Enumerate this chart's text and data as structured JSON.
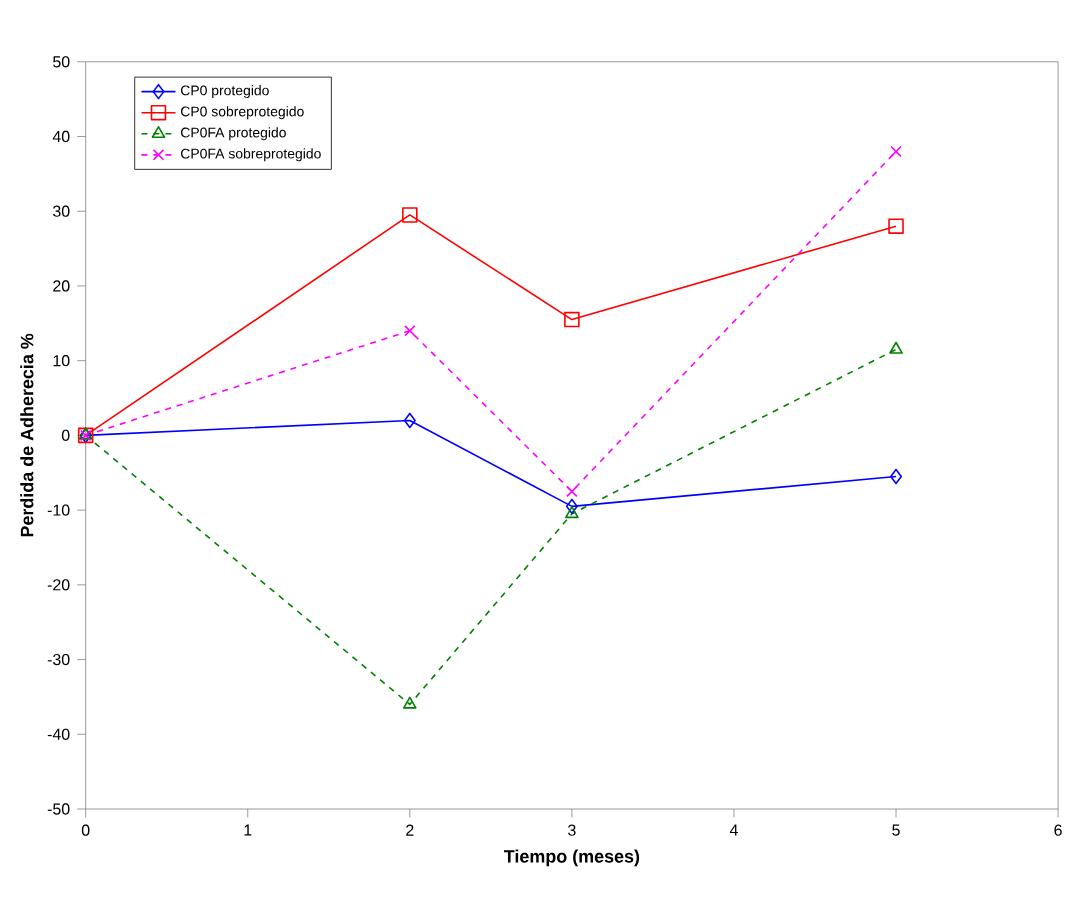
{
  "chart_data": {
    "type": "line",
    "xlabel": "Tiempo (meses)",
    "ylabel": "Perdida de Adherecia %",
    "x": [
      0,
      2,
      3,
      5
    ],
    "xlim": [
      0,
      6
    ],
    "xticks": [
      0,
      1,
      2,
      3,
      4,
      5,
      6
    ],
    "ylim": [
      -50,
      50
    ],
    "yticks": [
      -50,
      -40,
      -30,
      -20,
      -10,
      0,
      10,
      20,
      30,
      40,
      50
    ],
    "grid": false,
    "legend": "top left",
    "series": [
      {
        "name": "CP0 protegido",
        "color": "#0000ff",
        "values": [
          0,
          2,
          -9.5,
          -5.5
        ],
        "marker": "diamond",
        "line_style": "solid"
      },
      {
        "name": "CP0 sobreprotegido",
        "color": "#ff0000",
        "values": [
          0,
          29.5,
          15.5,
          28
        ],
        "marker": "square",
        "line_style": "solid"
      },
      {
        "name": "CP0FA protegido",
        "color": "#008000",
        "values": [
          0,
          -36,
          -10.5,
          11.5
        ],
        "marker": "triangle",
        "line_style": "dashed"
      },
      {
        "name": "CP0FA sobreprotegido",
        "color": "#ff00ff",
        "values": [
          0,
          14,
          -7.5,
          38
        ],
        "marker": "cross",
        "line_style": "dashed"
      }
    ]
  }
}
